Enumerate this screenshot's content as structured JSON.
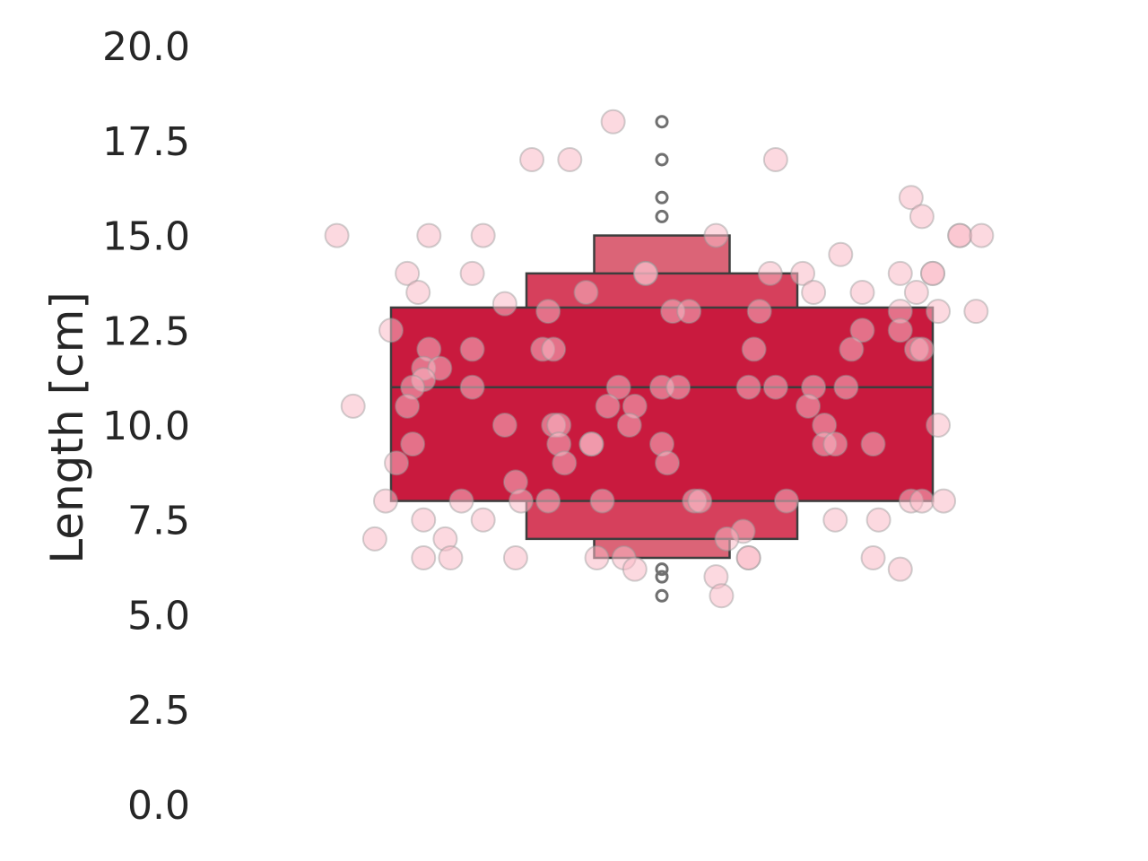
{
  "chart_data": {
    "type": "boxen",
    "title": "",
    "xlabel": "",
    "ylabel": "Length [cm]",
    "ylim": [
      -0.5,
      20.5
    ],
    "yticks": [
      "0.0",
      "2.5",
      "5.0",
      "7.5",
      "10.0",
      "12.5",
      "15.0",
      "17.5",
      "20.0"
    ],
    "grid": false,
    "colors": {
      "box_inner": "#c91a3e",
      "box_mid": "#d6405c",
      "box_outer": "#db6477",
      "box_edge": "#3d3d3d",
      "points": "#f9b9c7",
      "outlier_edge": "#707070"
    },
    "boxes": [
      {
        "level": "outer",
        "low": 6.5,
        "high": 15.0
      },
      {
        "level": "middle",
        "low": 7.0,
        "high": 14.0
      },
      {
        "level": "inner",
        "low": 8.0,
        "high": 13.1
      }
    ],
    "median": 11.0,
    "outliers": [
      18.0,
      17.0,
      16.0,
      15.5,
      6.2,
      6.0,
      5.5
    ],
    "points": [
      {
        "x": -0.6,
        "y": 15.0
      },
      {
        "x": -0.43,
        "y": 15.0
      },
      {
        "x": -0.33,
        "y": 15.0
      },
      {
        "x": 0.1,
        "y": 15.0
      },
      {
        "x": 0.55,
        "y": 15.0
      },
      {
        "x": 0.55,
        "y": 15.0
      },
      {
        "x": 0.59,
        "y": 15.0
      },
      {
        "x": -0.24,
        "y": 17.0
      },
      {
        "x": -0.17,
        "y": 17.0
      },
      {
        "x": 0.21,
        "y": 17.0
      },
      {
        "x": -0.09,
        "y": 18.0
      },
      {
        "x": 0.46,
        "y": 16.0
      },
      {
        "x": 0.48,
        "y": 15.5
      },
      {
        "x": 0.33,
        "y": 14.5
      },
      {
        "x": -0.47,
        "y": 14.0
      },
      {
        "x": -0.35,
        "y": 14.0
      },
      {
        "x": -0.03,
        "y": 14.0
      },
      {
        "x": -0.03,
        "y": 14.0
      },
      {
        "x": 0.2,
        "y": 14.0
      },
      {
        "x": 0.26,
        "y": 14.0
      },
      {
        "x": 0.44,
        "y": 14.0
      },
      {
        "x": 0.5,
        "y": 14.0
      },
      {
        "x": 0.5,
        "y": 14.0
      },
      {
        "x": -0.45,
        "y": 13.5
      },
      {
        "x": -0.14,
        "y": 13.5
      },
      {
        "x": 0.28,
        "y": 13.5
      },
      {
        "x": 0.37,
        "y": 13.5
      },
      {
        "x": 0.47,
        "y": 13.5
      },
      {
        "x": -0.29,
        "y": 13.2
      },
      {
        "x": -0.21,
        "y": 13.0
      },
      {
        "x": 0.02,
        "y": 13.0
      },
      {
        "x": 0.05,
        "y": 13.0
      },
      {
        "x": 0.18,
        "y": 13.0
      },
      {
        "x": 0.44,
        "y": 13.0
      },
      {
        "x": 0.51,
        "y": 13.0
      },
      {
        "x": 0.58,
        "y": 13.0
      },
      {
        "x": -0.5,
        "y": 12.5
      },
      {
        "x": 0.37,
        "y": 12.5
      },
      {
        "x": 0.44,
        "y": 12.5
      },
      {
        "x": -0.43,
        "y": 12.0
      },
      {
        "x": -0.35,
        "y": 12.0
      },
      {
        "x": -0.22,
        "y": 12.0
      },
      {
        "x": -0.2,
        "y": 12.0
      },
      {
        "x": 0.17,
        "y": 12.0
      },
      {
        "x": 0.35,
        "y": 12.0
      },
      {
        "x": 0.47,
        "y": 12.0
      },
      {
        "x": 0.48,
        "y": 12.0
      },
      {
        "x": -0.44,
        "y": 11.5
      },
      {
        "x": -0.41,
        "y": 11.5
      },
      {
        "x": -0.44,
        "y": 11.2
      },
      {
        "x": -0.46,
        "y": 11.0
      },
      {
        "x": -0.35,
        "y": 11.0
      },
      {
        "x": -0.08,
        "y": 11.0
      },
      {
        "x": 0.0,
        "y": 11.0
      },
      {
        "x": 0.03,
        "y": 11.0
      },
      {
        "x": 0.16,
        "y": 11.0
      },
      {
        "x": 0.21,
        "y": 11.0
      },
      {
        "x": 0.28,
        "y": 11.0
      },
      {
        "x": 0.34,
        "y": 11.0
      },
      {
        "x": -0.57,
        "y": 10.5
      },
      {
        "x": -0.47,
        "y": 10.5
      },
      {
        "x": -0.1,
        "y": 10.5
      },
      {
        "x": -0.05,
        "y": 10.5
      },
      {
        "x": 0.27,
        "y": 10.5
      },
      {
        "x": -0.29,
        "y": 10.0
      },
      {
        "x": -0.2,
        "y": 10.0
      },
      {
        "x": -0.19,
        "y": 10.0
      },
      {
        "x": -0.06,
        "y": 10.0
      },
      {
        "x": 0.3,
        "y": 10.0
      },
      {
        "x": 0.51,
        "y": 10.0
      },
      {
        "x": -0.46,
        "y": 9.5
      },
      {
        "x": -0.19,
        "y": 9.5
      },
      {
        "x": -0.13,
        "y": 9.5
      },
      {
        "x": -0.13,
        "y": 9.5
      },
      {
        "x": 0.0,
        "y": 9.5
      },
      {
        "x": 0.3,
        "y": 9.5
      },
      {
        "x": 0.32,
        "y": 9.5
      },
      {
        "x": 0.39,
        "y": 9.5
      },
      {
        "x": -0.49,
        "y": 9.0
      },
      {
        "x": -0.18,
        "y": 9.0
      },
      {
        "x": 0.01,
        "y": 9.0
      },
      {
        "x": -0.27,
        "y": 8.5
      },
      {
        "x": -0.51,
        "y": 8.0
      },
      {
        "x": -0.37,
        "y": 8.0
      },
      {
        "x": -0.26,
        "y": 8.0
      },
      {
        "x": -0.21,
        "y": 8.0
      },
      {
        "x": -0.11,
        "y": 8.0
      },
      {
        "x": 0.06,
        "y": 8.0
      },
      {
        "x": 0.07,
        "y": 8.0
      },
      {
        "x": 0.23,
        "y": 8.0
      },
      {
        "x": 0.46,
        "y": 8.0
      },
      {
        "x": 0.48,
        "y": 8.0
      },
      {
        "x": 0.52,
        "y": 8.0
      },
      {
        "x": -0.44,
        "y": 7.5
      },
      {
        "x": -0.33,
        "y": 7.5
      },
      {
        "x": 0.32,
        "y": 7.5
      },
      {
        "x": 0.4,
        "y": 7.5
      },
      {
        "x": 0.15,
        "y": 7.2
      },
      {
        "x": -0.53,
        "y": 7.0
      },
      {
        "x": -0.4,
        "y": 7.0
      },
      {
        "x": 0.12,
        "y": 7.0
      },
      {
        "x": -0.44,
        "y": 6.5
      },
      {
        "x": -0.39,
        "y": 6.5
      },
      {
        "x": -0.27,
        "y": 6.5
      },
      {
        "x": -0.12,
        "y": 6.5
      },
      {
        "x": -0.07,
        "y": 6.5
      },
      {
        "x": 0.16,
        "y": 6.5
      },
      {
        "x": 0.16,
        "y": 6.5
      },
      {
        "x": 0.39,
        "y": 6.5
      },
      {
        "x": -0.05,
        "y": 6.2
      },
      {
        "x": 0.44,
        "y": 6.2
      },
      {
        "x": 0.1,
        "y": 6.0
      },
      {
        "x": 0.11,
        "y": 5.5
      }
    ]
  }
}
